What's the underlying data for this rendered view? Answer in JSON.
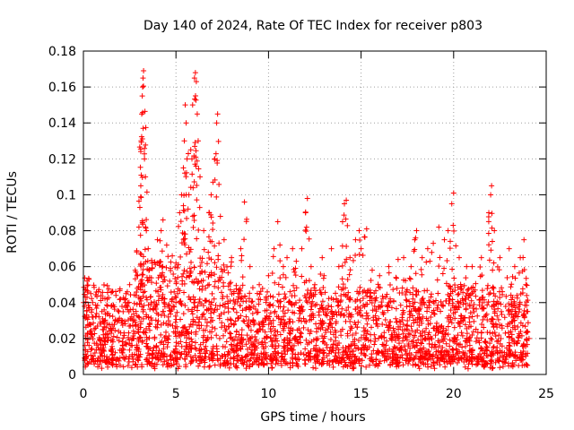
{
  "chart_data": {
    "type": "scatter",
    "title": "Day 140 of 2024, Rate Of TEC Index for receiver p803",
    "xlabel": "GPS time / hours",
    "ylabel": "ROTI / TECUs",
    "xlim": [
      0,
      25
    ],
    "ylim": [
      0,
      0.18
    ],
    "xticks": [
      "0",
      "5",
      "10",
      "15",
      "20",
      "25"
    ],
    "yticks": [
      "0",
      "0.02",
      "0.04",
      "0.06",
      "0.08",
      "0.1",
      "0.12",
      "0.14",
      "0.16",
      "0.18"
    ],
    "grid": true,
    "marker": "plus",
    "color": "#ff0000",
    "series": [
      {
        "name": "p803",
        "points": [
          [
            0.1,
            0.047
          ],
          [
            0.2,
            0.052
          ],
          [
            0.3,
            0.053
          ],
          [
            0.4,
            0.045
          ],
          [
            0.5,
            0.04
          ],
          [
            1.0,
            0.035
          ],
          [
            1.5,
            0.038
          ],
          [
            2.0,
            0.042
          ],
          [
            2.3,
            0.045
          ],
          [
            2.5,
            0.05
          ],
          [
            2.8,
            0.058
          ],
          [
            3.0,
            0.082
          ],
          [
            3.05,
            0.093
          ],
          [
            3.1,
            0.105
          ],
          [
            3.12,
            0.13
          ],
          [
            3.15,
            0.145
          ],
          [
            3.18,
            0.155
          ],
          [
            3.2,
            0.16
          ],
          [
            3.22,
            0.165
          ],
          [
            3.25,
            0.169
          ],
          [
            3.3,
            0.12
          ],
          [
            3.35,
            0.11
          ],
          [
            3.5,
            0.07
          ],
          [
            3.7,
            0.062
          ],
          [
            4.0,
            0.075
          ],
          [
            4.2,
            0.08
          ],
          [
            4.3,
            0.086
          ],
          [
            4.5,
            0.072
          ],
          [
            4.8,
            0.066
          ],
          [
            5.0,
            0.062
          ],
          [
            5.2,
            0.09
          ],
          [
            5.3,
            0.1
          ],
          [
            5.4,
            0.115
          ],
          [
            5.45,
            0.13
          ],
          [
            5.5,
            0.15
          ],
          [
            5.55,
            0.14
          ],
          [
            5.6,
            0.12
          ],
          [
            5.7,
            0.1
          ],
          [
            5.8,
            0.125
          ],
          [
            5.9,
            0.15
          ],
          [
            6.0,
            0.165
          ],
          [
            6.05,
            0.168
          ],
          [
            6.1,
            0.163
          ],
          [
            6.15,
            0.145
          ],
          [
            6.2,
            0.13
          ],
          [
            6.3,
            0.11
          ],
          [
            6.5,
            0.08
          ],
          [
            6.8,
            0.09
          ],
          [
            6.9,
            0.1
          ],
          [
            7.0,
            0.107
          ],
          [
            7.1,
            0.12
          ],
          [
            7.2,
            0.14
          ],
          [
            7.25,
            0.145
          ],
          [
            7.4,
            0.088
          ],
          [
            7.6,
            0.075
          ],
          [
            8.0,
            0.065
          ],
          [
            8.5,
            0.07
          ],
          [
            8.7,
            0.096
          ],
          [
            9.0,
            0.06
          ],
          [
            9.5,
            0.05
          ],
          [
            10.0,
            0.055
          ],
          [
            10.3,
            0.07
          ],
          [
            10.5,
            0.085
          ],
          [
            10.8,
            0.06
          ],
          [
            11.0,
            0.065
          ],
          [
            11.3,
            0.07
          ],
          [
            11.5,
            0.063
          ],
          [
            11.8,
            0.07
          ],
          [
            12.0,
            0.09
          ],
          [
            12.1,
            0.098
          ],
          [
            12.3,
            0.06
          ],
          [
            12.5,
            0.05
          ],
          [
            12.9,
            0.065
          ],
          [
            13.0,
            0.055
          ],
          [
            13.4,
            0.07
          ],
          [
            13.8,
            0.06
          ],
          [
            14.0,
            0.085
          ],
          [
            14.1,
            0.095
          ],
          [
            14.2,
            0.097
          ],
          [
            14.4,
            0.065
          ],
          [
            14.7,
            0.075
          ],
          [
            14.9,
            0.08
          ],
          [
            15.0,
            0.07
          ],
          [
            15.3,
            0.081
          ],
          [
            15.6,
            0.058
          ],
          [
            16.0,
            0.055
          ],
          [
            16.5,
            0.06
          ],
          [
            17.0,
            0.064
          ],
          [
            17.3,
            0.065
          ],
          [
            17.7,
            0.06
          ],
          [
            17.9,
            0.075
          ],
          [
            18.0,
            0.08
          ],
          [
            18.3,
            0.065
          ],
          [
            18.6,
            0.07
          ],
          [
            18.9,
            0.073
          ],
          [
            19.2,
            0.082
          ],
          [
            19.5,
            0.075
          ],
          [
            19.7,
            0.08
          ],
          [
            19.9,
            0.095
          ],
          [
            20.0,
            0.101
          ],
          [
            20.3,
            0.065
          ],
          [
            20.7,
            0.06
          ],
          [
            21.0,
            0.06
          ],
          [
            21.5,
            0.065
          ],
          [
            21.9,
            0.09
          ],
          [
            22.0,
            0.1
          ],
          [
            22.05,
            0.105
          ],
          [
            22.2,
            0.08
          ],
          [
            22.5,
            0.065
          ],
          [
            23.0,
            0.07
          ],
          [
            23.3,
            0.06
          ],
          [
            23.6,
            0.065
          ],
          [
            23.8,
            0.075
          ],
          [
            23.9,
            0.05
          ],
          [
            24.0,
            0.035
          ]
        ],
        "dense_band": {
          "description_of_values": "bulk of samples between 0.003 and ~0.045 across full day, elevated spread 3-8 h",
          "x_range": [
            0,
            24
          ],
          "y_min": 0.003,
          "y_typical_max": 0.045
        }
      }
    ]
  }
}
